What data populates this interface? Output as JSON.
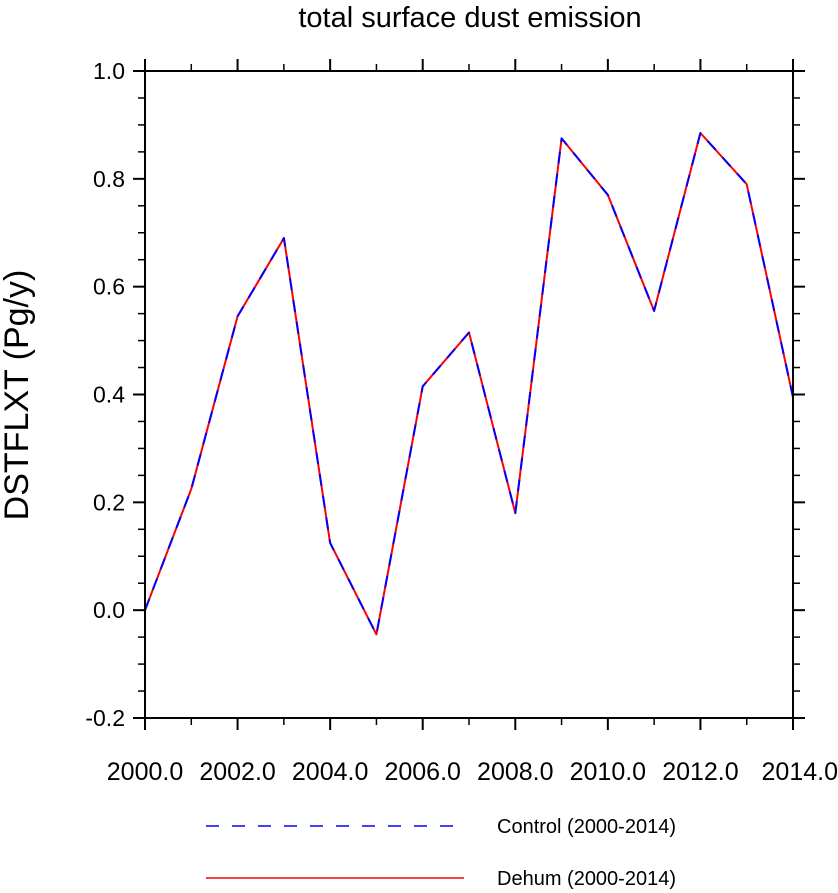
{
  "chart_data": {
    "type": "line",
    "title": "total surface dust emission",
    "xlabel": "",
    "ylabel": "DSTFLXT  (Pg/y)",
    "xlim": [
      2000,
      2014
    ],
    "ylim": [
      -0.2,
      1.0
    ],
    "xticks": [
      "2000.0",
      "2002.0",
      "2004.0",
      "2006.0",
      "2008.0",
      "2010.0",
      "2012.0",
      "2014.0"
    ],
    "yticks": [
      "-0.2",
      "0.0",
      "0.2",
      "0.4",
      "0.6",
      "0.8",
      "1.0"
    ],
    "x": [
      2000,
      2001,
      2002,
      2003,
      2004,
      2005,
      2006,
      2007,
      2008,
      2009,
      2010,
      2011,
      2012,
      2013,
      2014
    ],
    "series": [
      {
        "name": "Control (2000-2014)",
        "color": "#0000ff",
        "style": "dashed",
        "values": [
          0.0,
          0.225,
          0.545,
          0.69,
          0.125,
          -0.045,
          0.415,
          0.515,
          0.18,
          0.875,
          0.77,
          0.555,
          0.885,
          0.79,
          0.395
        ]
      },
      {
        "name": "Dehum (2000-2014)",
        "color": "#ff0000",
        "style": "solid",
        "values": [
          0.0,
          0.225,
          0.545,
          0.69,
          0.125,
          -0.045,
          0.415,
          0.515,
          0.18,
          0.875,
          0.77,
          0.555,
          0.885,
          0.79,
          0.395
        ]
      }
    ],
    "grid": false,
    "legend_position": "bottom"
  }
}
